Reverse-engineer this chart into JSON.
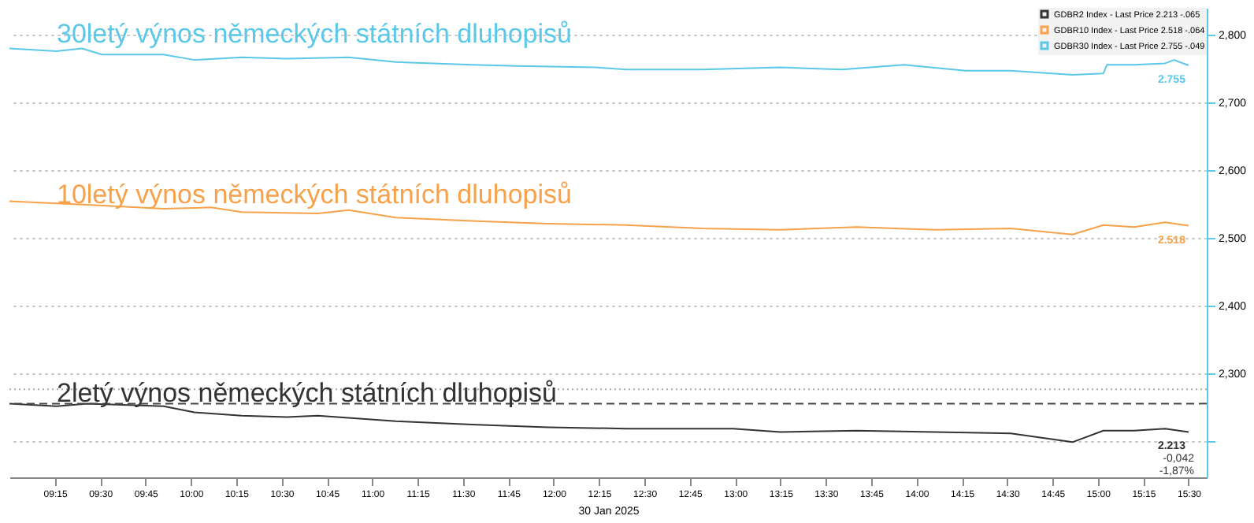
{
  "chart_data": {
    "type": "line",
    "xlabel": "30 Jan 2025",
    "xlim": [
      9.0,
      15.6
    ],
    "ylim": [
      2.146,
      2.84
    ],
    "xticks": [
      {
        "value": 9.25,
        "label": "09:15"
      },
      {
        "value": 9.5,
        "label": "09:30"
      },
      {
        "value": 9.75,
        "label": "09:45"
      },
      {
        "value": 10,
        "label": "10:00"
      },
      {
        "value": 10.25,
        "label": "10:15"
      },
      {
        "value": 10.5,
        "label": "10:30"
      },
      {
        "value": 10.75,
        "label": "10:45"
      },
      {
        "value": 11,
        "label": "11:00"
      },
      {
        "value": 11.25,
        "label": "11:15"
      },
      {
        "value": 11.5,
        "label": "11:30"
      },
      {
        "value": 11.75,
        "label": "11:45"
      },
      {
        "value": 12,
        "label": "12:00"
      },
      {
        "value": 12.25,
        "label": "12:15"
      },
      {
        "value": 12.5,
        "label": "12:30"
      },
      {
        "value": 12.75,
        "label": "12:45"
      },
      {
        "value": 13,
        "label": "13:00"
      },
      {
        "value": 13.25,
        "label": "13:15"
      },
      {
        "value": 13.5,
        "label": "13:30"
      },
      {
        "value": 13.75,
        "label": "13:45"
      },
      {
        "value": 14,
        "label": "14:00"
      },
      {
        "value": 14.25,
        "label": "14:15"
      },
      {
        "value": 14.5,
        "label": "14:30"
      },
      {
        "value": 14.75,
        "label": "14:45"
      },
      {
        "value": 15,
        "label": "15:00"
      },
      {
        "value": 15.25,
        "label": "15:15"
      },
      {
        "value": 15.5,
        "label": "15:30"
      }
    ],
    "yticks": [
      {
        "value": 2.2,
        "label": null
      },
      {
        "value": 2.3,
        "label": "2,300"
      },
      {
        "value": 2.4,
        "label": "2,400"
      },
      {
        "value": 2.5,
        "label": "2,500"
      },
      {
        "value": 2.6,
        "label": "2,600"
      },
      {
        "value": 2.7,
        "label": "2,700"
      },
      {
        "value": 2.8,
        "label": "2,800"
      }
    ],
    "grid": "y",
    "legend": "top right",
    "line_style": "solid",
    "marker": "none",
    "series": [
      {
        "name": "GDBR2 Index - Last Price 2.213 -.065",
        "color": "#333333",
        "x": [
          9.0,
          9.26,
          9.43,
          9.85,
          10.02,
          10.28,
          10.53,
          10.7,
          11.13,
          11.55,
          11.97,
          12.4,
          12.99,
          13.25,
          13.67,
          14.1,
          14.52,
          14.86,
          15.03,
          15.2,
          15.37,
          15.5
        ],
        "values": [
          2.255,
          2.251,
          2.255,
          2.251,
          2.242,
          2.237,
          2.235,
          2.237,
          2.229,
          2.224,
          2.22,
          2.218,
          2.218,
          2.213,
          2.215,
          2.213,
          2.211,
          2.198,
          2.215,
          2.215,
          2.218,
          2.213
        ]
      },
      {
        "name": "GDBR10 Index - Last Price 2.518 -.064",
        "color": "#f7a14a",
        "x": [
          9.0,
          9.43,
          9.85,
          10.11,
          10.28,
          10.7,
          10.87,
          11.13,
          11.55,
          11.97,
          12.4,
          12.82,
          13.25,
          13.67,
          14.1,
          14.52,
          14.86,
          15.03,
          15.2,
          15.37,
          15.5
        ],
        "values": [
          2.554,
          2.549,
          2.543,
          2.545,
          2.538,
          2.536,
          2.541,
          2.53,
          2.525,
          2.521,
          2.519,
          2.514,
          2.512,
          2.516,
          2.512,
          2.514,
          2.505,
          2.519,
          2.516,
          2.523,
          2.518
        ]
      },
      {
        "name": "GDBR30 Index - Last Price 2.755 -.049",
        "color": "#5bc8e8",
        "x": [
          9.0,
          9.26,
          9.4,
          9.51,
          9.85,
          10.02,
          10.28,
          10.53,
          10.87,
          11.13,
          11.55,
          11.8,
          12.23,
          12.4,
          12.82,
          13.25,
          13.59,
          13.93,
          14.27,
          14.52,
          14.86,
          15.03,
          15.05,
          15.2,
          15.37,
          15.42,
          15.5
        ],
        "values": [
          2.78,
          2.776,
          2.78,
          2.771,
          2.771,
          2.763,
          2.767,
          2.765,
          2.767,
          2.76,
          2.756,
          2.754,
          2.752,
          2.749,
          2.749,
          2.752,
          2.749,
          2.756,
          2.747,
          2.747,
          2.741,
          2.743,
          2.756,
          2.756,
          2.758,
          2.763,
          2.755
        ]
      }
    ],
    "ref_lines": [
      {
        "axis": "y",
        "value": 2.255,
        "line_style": "dashed",
        "color": "#444444"
      },
      {
        "axis": "y",
        "value": 2.276,
        "line_style": "dotted",
        "color": "#aaaaaa"
      }
    ],
    "annotations": [
      "30letý výnos německých státních dluhopisů",
      "10letý výnos německých státních dluhopisů",
      "2letý výnos německých státních dluhopisů",
      "2.755",
      "2.518",
      "2.213",
      "-0,042",
      "-1,87%"
    ]
  }
}
